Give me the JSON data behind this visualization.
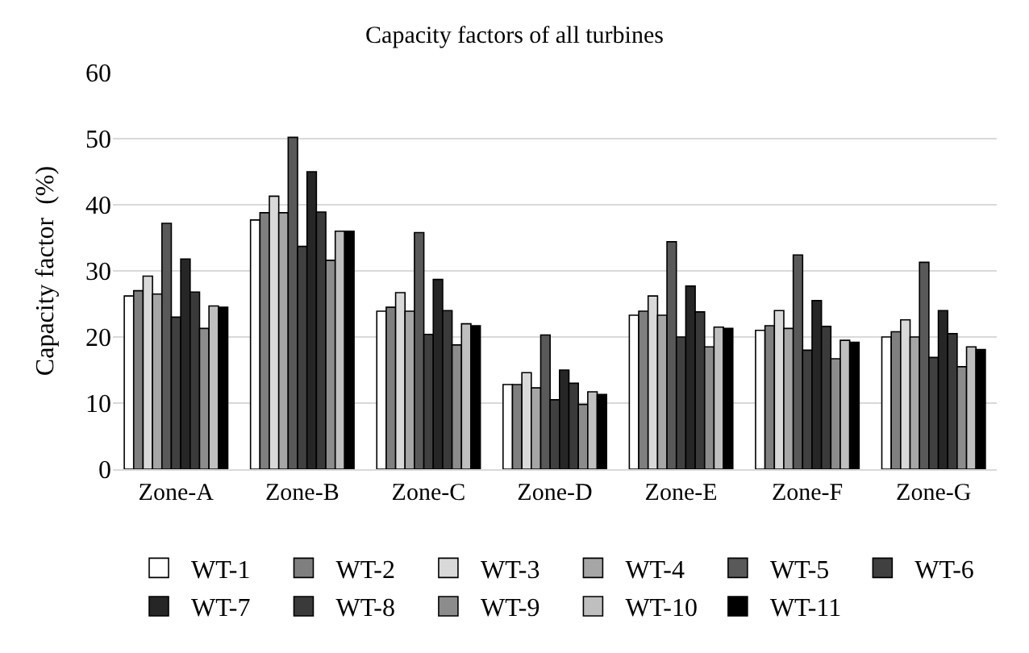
{
  "chart_data": {
    "type": "bar",
    "title": "Capacity factors of all turbines",
    "ylabel": "Capacity factor  (%)",
    "categories": [
      "Zone-A",
      "Zone-B",
      "Zone-C",
      "Zone-D",
      "Zone-E",
      "Zone-F",
      "Zone-G"
    ],
    "series": [
      {
        "name": "WT-1",
        "color": "#ffffff",
        "values": [
          26.2,
          37.7,
          23.9,
          12.8,
          23.3,
          21,
          20
        ]
      },
      {
        "name": "WT-2",
        "color": "#7f7f7f",
        "values": [
          27,
          38.8,
          24.5,
          12.8,
          23.9,
          21.7,
          20.8
        ]
      },
      {
        "name": "WT-3",
        "color": "#d9d9d9",
        "values": [
          29.2,
          41.3,
          26.7,
          14.6,
          26.2,
          24,
          22.6
        ]
      },
      {
        "name": "WT-4",
        "color": "#a6a6a6",
        "values": [
          26.5,
          38.8,
          23.9,
          12.3,
          23.3,
          21.3,
          20
        ]
      },
      {
        "name": "WT-5",
        "color": "#595959",
        "values": [
          37.2,
          50.2,
          35.8,
          20.3,
          34.4,
          32.4,
          31.3
        ]
      },
      {
        "name": "WT-6",
        "color": "#404040",
        "values": [
          23,
          33.7,
          20.4,
          10.5,
          20,
          18,
          16.9
        ]
      },
      {
        "name": "WT-7",
        "color": "#262626",
        "values": [
          31.8,
          45,
          28.7,
          15,
          27.7,
          25.5,
          24
        ]
      },
      {
        "name": "WT-8",
        "color": "#3a3a3a",
        "values": [
          26.8,
          38.9,
          24,
          13,
          23.8,
          21.6,
          20.5
        ]
      },
      {
        "name": "WT-9",
        "color": "#8c8c8c",
        "values": [
          21.3,
          31.6,
          18.8,
          9.8,
          18.5,
          16.7,
          15.5
        ]
      },
      {
        "name": "WT-10",
        "color": "#bfbfbf",
        "values": [
          24.7,
          36,
          22,
          11.7,
          21.5,
          19.5,
          18.5
        ]
      },
      {
        "name": "WT-11",
        "color": "#000000",
        "values": [
          24.5,
          36,
          21.7,
          11.3,
          21.3,
          19.2,
          18.1
        ]
      }
    ],
    "ylim": [
      0,
      60
    ],
    "yticks": [
      0,
      10,
      20,
      30,
      40,
      50,
      60
    ],
    "grid": "y",
    "legend": "bottom"
  }
}
